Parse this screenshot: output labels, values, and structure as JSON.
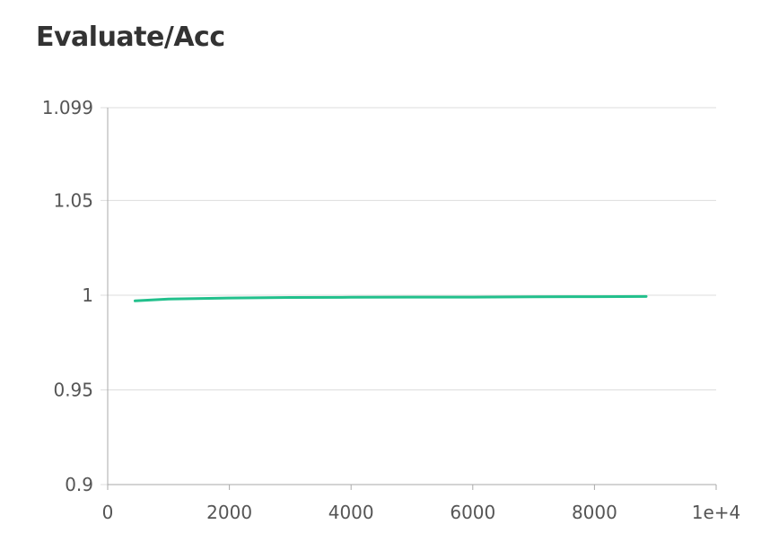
{
  "chart_data": {
    "type": "line",
    "title": "Evaluate/Acc",
    "xlabel": "",
    "ylabel": "",
    "xlim": [
      0,
      10000
    ],
    "ylim": [
      0.9,
      1.099
    ],
    "x_ticks": [
      "0",
      "2000",
      "4000",
      "6000",
      "8000",
      "1e+4"
    ],
    "y_ticks": [
      "1.099",
      "1.05",
      "1",
      "0.95",
      "0.9"
    ],
    "grid": "horizontal",
    "legend": "none",
    "series": [
      {
        "color": "#22c08c",
        "x": [
          450,
          1000,
          2000,
          3000,
          4000,
          5000,
          6000,
          7000,
          8000,
          8850
        ],
        "y": [
          0.997,
          0.998,
          0.9985,
          0.9988,
          0.9989,
          0.999,
          0.999,
          0.9991,
          0.9992,
          0.9993
        ]
      }
    ]
  }
}
